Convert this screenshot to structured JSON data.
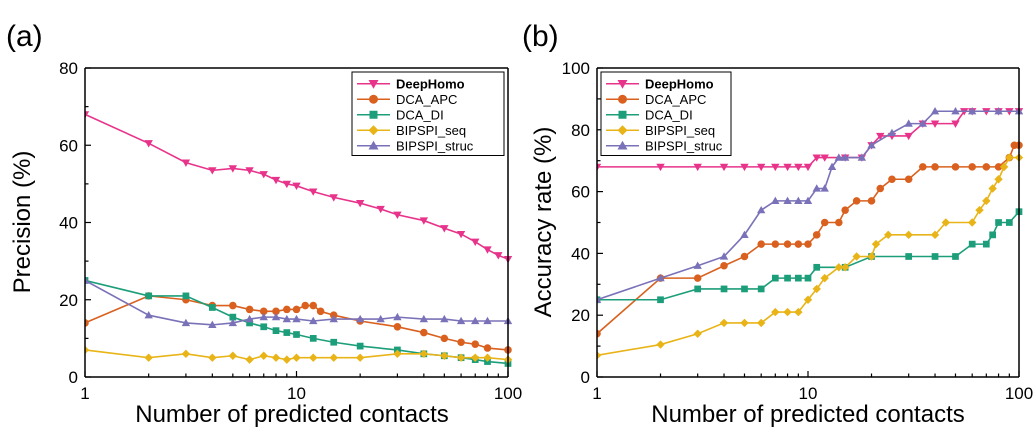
{
  "chart_data": [
    {
      "type": "line",
      "panel_label": "(a)",
      "xlabel": "Number of predicted contacts",
      "ylabel": "Precision (%)",
      "xscale": "log",
      "xlim": [
        1,
        100
      ],
      "ylim": [
        0,
        80
      ],
      "x_ticks": [
        1,
        10,
        100
      ],
      "y_ticks": [
        0,
        20,
        40,
        60,
        80
      ],
      "legend_position": "top-right",
      "grid": false,
      "series": [
        {
          "name": "DeepHomo",
          "color": "#e8338b",
          "marker": "triangle-down",
          "points": [
            [
              1,
              68
            ],
            [
              2,
              60.5
            ],
            [
              3,
              55.5
            ],
            [
              4,
              53.5
            ],
            [
              5,
              54
            ],
            [
              6,
              53.5
            ],
            [
              7,
              52.5
            ],
            [
              8,
              51
            ],
            [
              9,
              50
            ],
            [
              10,
              49.5
            ],
            [
              12,
              48
            ],
            [
              15,
              46.5
            ],
            [
              20,
              45
            ],
            [
              25,
              43.5
            ],
            [
              30,
              42
            ],
            [
              40,
              40.5
            ],
            [
              50,
              38.5
            ],
            [
              60,
              37
            ],
            [
              70,
              35
            ],
            [
              80,
              33
            ],
            [
              90,
              31.5
            ],
            [
              100,
              30.5
            ]
          ]
        },
        {
          "name": "DCA_APC",
          "color": "#d9601e",
          "marker": "circle",
          "points": [
            [
              1,
              14
            ],
            [
              2,
              21
            ],
            [
              3,
              20
            ],
            [
              4,
              18.5
            ],
            [
              5,
              18.5
            ],
            [
              6,
              17.5
            ],
            [
              7,
              17
            ],
            [
              8,
              17
            ],
            [
              9,
              17.5
            ],
            [
              10,
              17.5
            ],
            [
              11,
              18.5
            ],
            [
              12,
              18.5
            ],
            [
              13,
              17
            ],
            [
              15,
              16
            ],
            [
              20,
              14.5
            ],
            [
              30,
              13
            ],
            [
              40,
              11.5
            ],
            [
              50,
              10
            ],
            [
              60,
              9
            ],
            [
              70,
              8.5
            ],
            [
              80,
              7.5
            ],
            [
              100,
              7
            ]
          ]
        },
        {
          "name": "DCA_DI",
          "color": "#1d9e7a",
          "marker": "square",
          "points": [
            [
              1,
              25
            ],
            [
              2,
              21
            ],
            [
              3,
              21
            ],
            [
              4,
              18
            ],
            [
              5,
              15.5
            ],
            [
              6,
              14
            ],
            [
              7,
              13
            ],
            [
              8,
              12
            ],
            [
              9,
              11.5
            ],
            [
              10,
              11
            ],
            [
              12,
              10
            ],
            [
              15,
              9
            ],
            [
              20,
              8
            ],
            [
              30,
              7
            ],
            [
              40,
              6
            ],
            [
              50,
              5.5
            ],
            [
              60,
              5
            ],
            [
              70,
              4.5
            ],
            [
              80,
              4
            ],
            [
              100,
              3.5
            ]
          ]
        },
        {
          "name": "BIPSPI_seq",
          "color": "#e8b417",
          "marker": "diamond",
          "points": [
            [
              1,
              7
            ],
            [
              2,
              5
            ],
            [
              3,
              6
            ],
            [
              4,
              5
            ],
            [
              5,
              5.5
            ],
            [
              6,
              4.5
            ],
            [
              7,
              5.5
            ],
            [
              8,
              5
            ],
            [
              9,
              4.5
            ],
            [
              10,
              5
            ],
            [
              12,
              5
            ],
            [
              15,
              5
            ],
            [
              20,
              5
            ],
            [
              30,
              6
            ],
            [
              40,
              6
            ],
            [
              50,
              5.5
            ],
            [
              60,
              5
            ],
            [
              70,
              5
            ],
            [
              80,
              5
            ],
            [
              100,
              4.5
            ]
          ]
        },
        {
          "name": "BIPSPI_struc",
          "color": "#7a72b8",
          "marker": "triangle-up",
          "points": [
            [
              1,
              25
            ],
            [
              2,
              16
            ],
            [
              3,
              14
            ],
            [
              4,
              13.5
            ],
            [
              5,
              14
            ],
            [
              6,
              15
            ],
            [
              7,
              15.5
            ],
            [
              8,
              15.5
            ],
            [
              9,
              15
            ],
            [
              10,
              15
            ],
            [
              12,
              14.5
            ],
            [
              15,
              15
            ],
            [
              20,
              15
            ],
            [
              25,
              15
            ],
            [
              30,
              15.5
            ],
            [
              40,
              15
            ],
            [
              50,
              15
            ],
            [
              60,
              14.5
            ],
            [
              70,
              14.5
            ],
            [
              80,
              14.5
            ],
            [
              100,
              14.5
            ]
          ]
        }
      ]
    },
    {
      "type": "line",
      "panel_label": "(b)",
      "xlabel": "Number of predicted contacts",
      "ylabel": "Accuracy rate (%)",
      "xscale": "log",
      "xlim": [
        1,
        100
      ],
      "ylim": [
        0,
        100
      ],
      "x_ticks": [
        1,
        10,
        100
      ],
      "y_ticks": [
        0,
        20,
        40,
        60,
        80,
        100
      ],
      "legend_position": "top-left",
      "grid": false,
      "series": [
        {
          "name": "DeepHomo",
          "color": "#e8338b",
          "marker": "triangle-down",
          "points": [
            [
              1,
              68
            ],
            [
              2,
              68
            ],
            [
              3,
              68
            ],
            [
              4,
              68
            ],
            [
              5,
              68
            ],
            [
              6,
              68
            ],
            [
              7,
              68
            ],
            [
              8,
              68
            ],
            [
              9,
              68
            ],
            [
              10,
              68
            ],
            [
              11,
              71
            ],
            [
              12,
              71
            ],
            [
              15,
              71
            ],
            [
              18,
              71
            ],
            [
              20,
              75
            ],
            [
              22,
              78
            ],
            [
              25,
              78
            ],
            [
              30,
              78
            ],
            [
              35,
              82
            ],
            [
              40,
              82
            ],
            [
              50,
              82
            ],
            [
              55,
              86
            ],
            [
              60,
              86
            ],
            [
              70,
              86
            ],
            [
              80,
              86
            ],
            [
              90,
              86
            ],
            [
              100,
              86
            ]
          ]
        },
        {
          "name": "DCA_APC",
          "color": "#d9601e",
          "marker": "circle",
          "points": [
            [
              1,
              14
            ],
            [
              2,
              32
            ],
            [
              3,
              32
            ],
            [
              4,
              36
            ],
            [
              5,
              39
            ],
            [
              6,
              43
            ],
            [
              7,
              43
            ],
            [
              8,
              43
            ],
            [
              9,
              43
            ],
            [
              10,
              43
            ],
            [
              11,
              46
            ],
            [
              12,
              50
            ],
            [
              14,
              50
            ],
            [
              15,
              54
            ],
            [
              17,
              57
            ],
            [
              20,
              57
            ],
            [
              22,
              61
            ],
            [
              25,
              64
            ],
            [
              30,
              64
            ],
            [
              35,
              68
            ],
            [
              40,
              68
            ],
            [
              50,
              68
            ],
            [
              60,
              68
            ],
            [
              70,
              68
            ],
            [
              80,
              68
            ],
            [
              90,
              71
            ],
            [
              95,
              75
            ],
            [
              100,
              75
            ]
          ]
        },
        {
          "name": "DCA_DI",
          "color": "#1d9e7a",
          "marker": "square",
          "points": [
            [
              1,
              25
            ],
            [
              2,
              25
            ],
            [
              3,
              28.5
            ],
            [
              4,
              28.5
            ],
            [
              5,
              28.5
            ],
            [
              6,
              28.5
            ],
            [
              7,
              32
            ],
            [
              8,
              32
            ],
            [
              9,
              32
            ],
            [
              10,
              32
            ],
            [
              11,
              35.5
            ],
            [
              15,
              35.5
            ],
            [
              20,
              39
            ],
            [
              30,
              39
            ],
            [
              40,
              39
            ],
            [
              50,
              39
            ],
            [
              60,
              43
            ],
            [
              70,
              43
            ],
            [
              75,
              46
            ],
            [
              80,
              50
            ],
            [
              90,
              50
            ],
            [
              100,
              53.5
            ]
          ]
        },
        {
          "name": "BIPSPI_seq",
          "color": "#e8b417",
          "marker": "diamond",
          "points": [
            [
              1,
              7
            ],
            [
              2,
              10.5
            ],
            [
              3,
              14
            ],
            [
              4,
              17.5
            ],
            [
              5,
              17.5
            ],
            [
              6,
              17.5
            ],
            [
              7,
              21
            ],
            [
              8,
              21
            ],
            [
              9,
              21
            ],
            [
              10,
              25
            ],
            [
              11,
              28.5
            ],
            [
              12,
              32
            ],
            [
              14,
              35.5
            ],
            [
              15,
              35.5
            ],
            [
              17,
              39
            ],
            [
              20,
              39
            ],
            [
              21,
              43
            ],
            [
              24,
              46
            ],
            [
              30,
              46
            ],
            [
              40,
              46
            ],
            [
              45,
              50
            ],
            [
              60,
              50
            ],
            [
              65,
              54
            ],
            [
              70,
              57
            ],
            [
              75,
              61
            ],
            [
              80,
              64
            ],
            [
              85,
              68
            ],
            [
              90,
              71
            ],
            [
              100,
              71
            ]
          ]
        },
        {
          "name": "BIPSPI_struc",
          "color": "#7a72b8",
          "marker": "triangle-up",
          "points": [
            [
              1,
              25
            ],
            [
              2,
              32
            ],
            [
              3,
              36
            ],
            [
              4,
              39
            ],
            [
              5,
              46
            ],
            [
              6,
              54
            ],
            [
              7,
              57
            ],
            [
              8,
              57
            ],
            [
              9,
              57
            ],
            [
              10,
              57
            ],
            [
              11,
              61
            ],
            [
              12,
              61
            ],
            [
              13,
              68
            ],
            [
              14,
              71
            ],
            [
              15,
              71
            ],
            [
              18,
              71
            ],
            [
              20,
              75
            ],
            [
              25,
              79
            ],
            [
              30,
              82
            ],
            [
              35,
              82
            ],
            [
              40,
              86
            ],
            [
              50,
              86
            ],
            [
              60,
              86
            ],
            [
              80,
              86
            ],
            [
              100,
              86
            ]
          ]
        }
      ]
    }
  ]
}
